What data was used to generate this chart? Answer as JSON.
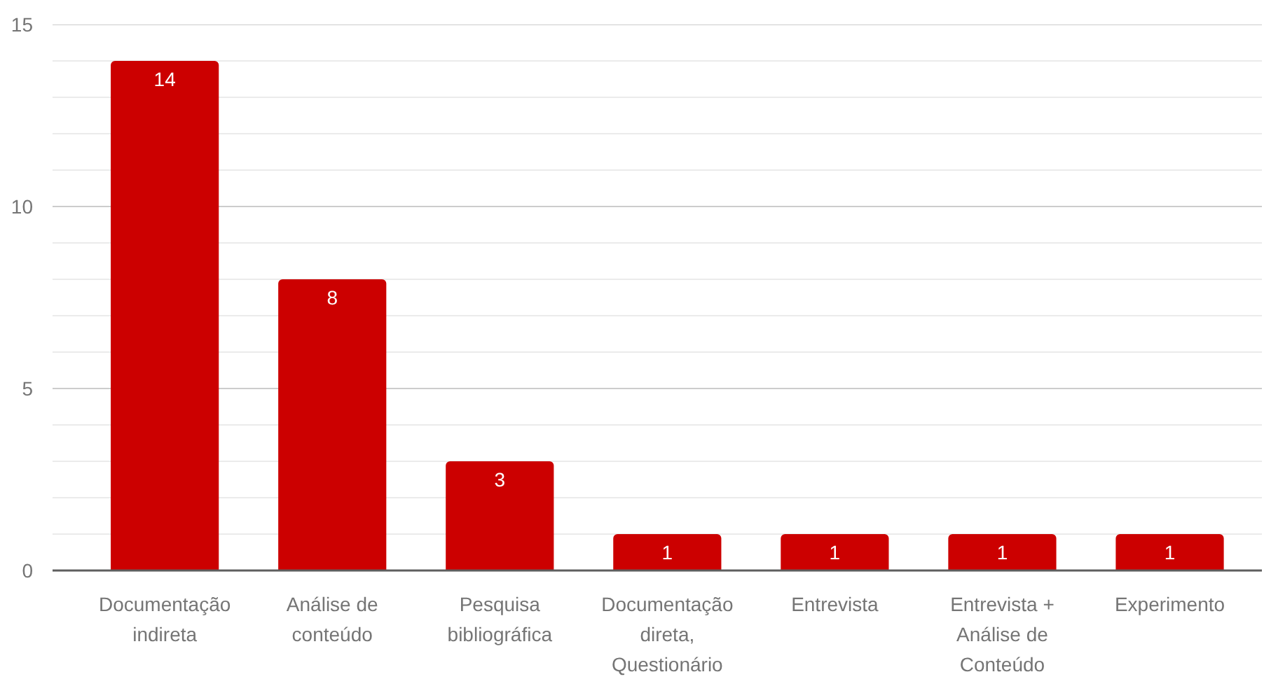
{
  "chart_data": {
    "type": "bar",
    "categories": [
      "Documentação indireta",
      "Análise de conteúdo",
      "Pesquisa bibliográfica",
      "Documentação direta, Questionário",
      "Entrevista",
      "Entrevista + Análise de Conteúdo",
      "Experimento"
    ],
    "values": [
      14,
      8,
      3,
      1,
      1,
      1,
      1
    ],
    "color": "#cc0000",
    "ylim": [
      0,
      15
    ],
    "yticks": [
      0,
      {
        "value": 1,
        "label": null
      },
      {
        "value": 2,
        "label": null
      },
      {
        "value": 3,
        "label": null
      },
      {
        "value": 4,
        "label": null
      },
      5,
      {
        "value": 6,
        "label": null
      },
      {
        "value": 7,
        "label": null
      },
      {
        "value": 8,
        "label": null
      },
      {
        "value": 9,
        "label": null
      },
      10,
      {
        "value": 11,
        "label": null
      },
      {
        "value": 12,
        "label": null
      },
      {
        "value": 13,
        "label": null
      },
      {
        "value": 14,
        "label": null
      },
      15
    ],
    "grid": "y",
    "data_labels": true
  }
}
